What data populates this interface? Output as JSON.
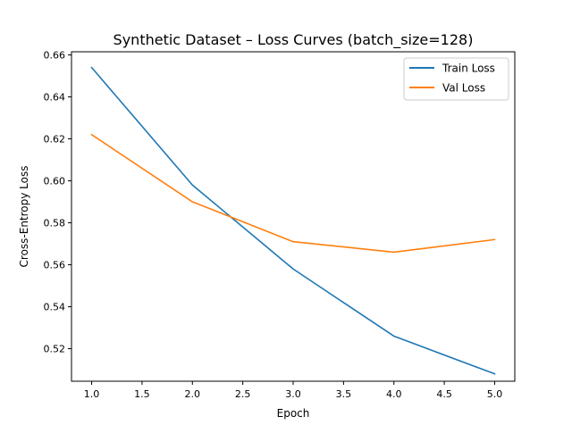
{
  "chart_data": {
    "type": "line",
    "title": "Synthetic Dataset – Loss Curves (batch_size=128)",
    "xlabel": "Epoch",
    "ylabel": "Cross-Entropy Loss",
    "x": [
      1.0,
      2.0,
      3.0,
      4.0,
      5.0
    ],
    "xlim": [
      0.8,
      5.2
    ],
    "ylim": [
      0.5045,
      0.6615
    ],
    "x_ticks": [
      1.0,
      1.5,
      2.0,
      2.5,
      3.0,
      3.5,
      4.0,
      4.5,
      5.0
    ],
    "x_tick_labels": [
      "1.0",
      "1.5",
      "2.0",
      "2.5",
      "3.0",
      "3.5",
      "4.0",
      "4.5",
      "5.0"
    ],
    "y_ticks": [
      0.52,
      0.54,
      0.56,
      0.58,
      0.6,
      0.62,
      0.64,
      0.66
    ],
    "y_tick_labels": [
      "0.52",
      "0.54",
      "0.56",
      "0.58",
      "0.60",
      "0.62",
      "0.64",
      "0.66"
    ],
    "grid": false,
    "legend_position": "top-right",
    "series": [
      {
        "name": "Train Loss",
        "color": "#1f77b4",
        "values": [
          0.654,
          0.598,
          0.558,
          0.526,
          0.508
        ]
      },
      {
        "name": "Val Loss",
        "color": "#ff7f0e",
        "values": [
          0.622,
          0.59,
          0.571,
          0.566,
          0.572
        ]
      }
    ]
  }
}
